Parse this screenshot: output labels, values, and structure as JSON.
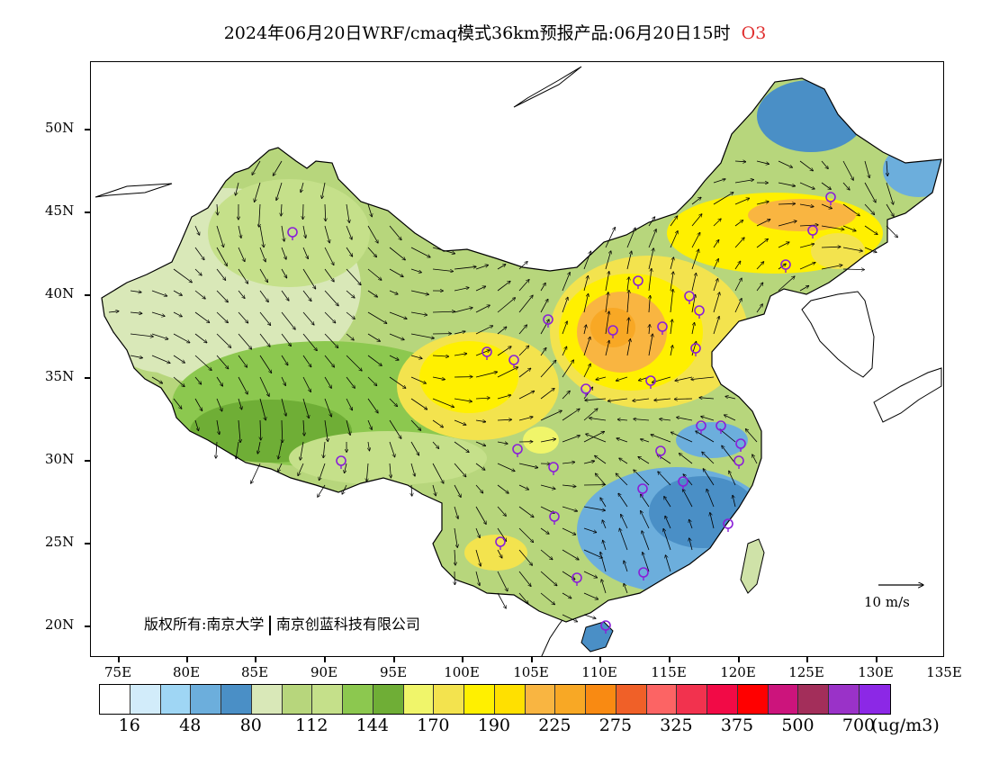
{
  "title": {
    "main": "2024年06月20日WRF/cmaq模式36km预报产品:06月20日15时",
    "species": "O3"
  },
  "axes": {
    "latitude_labels": [
      "50N",
      "45N",
      "40N",
      "35N",
      "30N",
      "25N",
      "20N"
    ],
    "longitude_labels": [
      "75E",
      "80E",
      "85E",
      "90E",
      "95E",
      "100E",
      "105E",
      "110E",
      "115E",
      "120E",
      "125E",
      "130E",
      "135E"
    ],
    "lat_range": [
      18,
      54
    ],
    "lon_range": [
      73,
      135
    ]
  },
  "copyright": {
    "prefix": "版权所有:",
    "org1": "南京大学",
    "org2": "南京创蓝科技有限公司"
  },
  "wind_reference": {
    "label": "10 m/s"
  },
  "legend": {
    "unit": "(ug/m3)",
    "labels": [
      "16",
      "48",
      "80",
      "112",
      "144",
      "170",
      "190",
      "225",
      "275",
      "325",
      "375",
      "500",
      "700"
    ],
    "colors": [
      "#ffffff",
      "#d2ecfa",
      "#9fd6f4",
      "#6caedc",
      "#4a8fc6",
      "#d9e8b8",
      "#b7d67c",
      "#c5e08a",
      "#8cc84f",
      "#6fae36",
      "#f0f56a",
      "#f3e34e",
      "#fff000",
      "#ffe000",
      "#f9b541",
      "#f8a825",
      "#f98a12",
      "#f06028",
      "#fc6464",
      "#f2324e",
      "#f20a46",
      "#ff0000",
      "#cc147c",
      "#a32e5a",
      "#9a32c8",
      "#8c28e6"
    ]
  }
}
